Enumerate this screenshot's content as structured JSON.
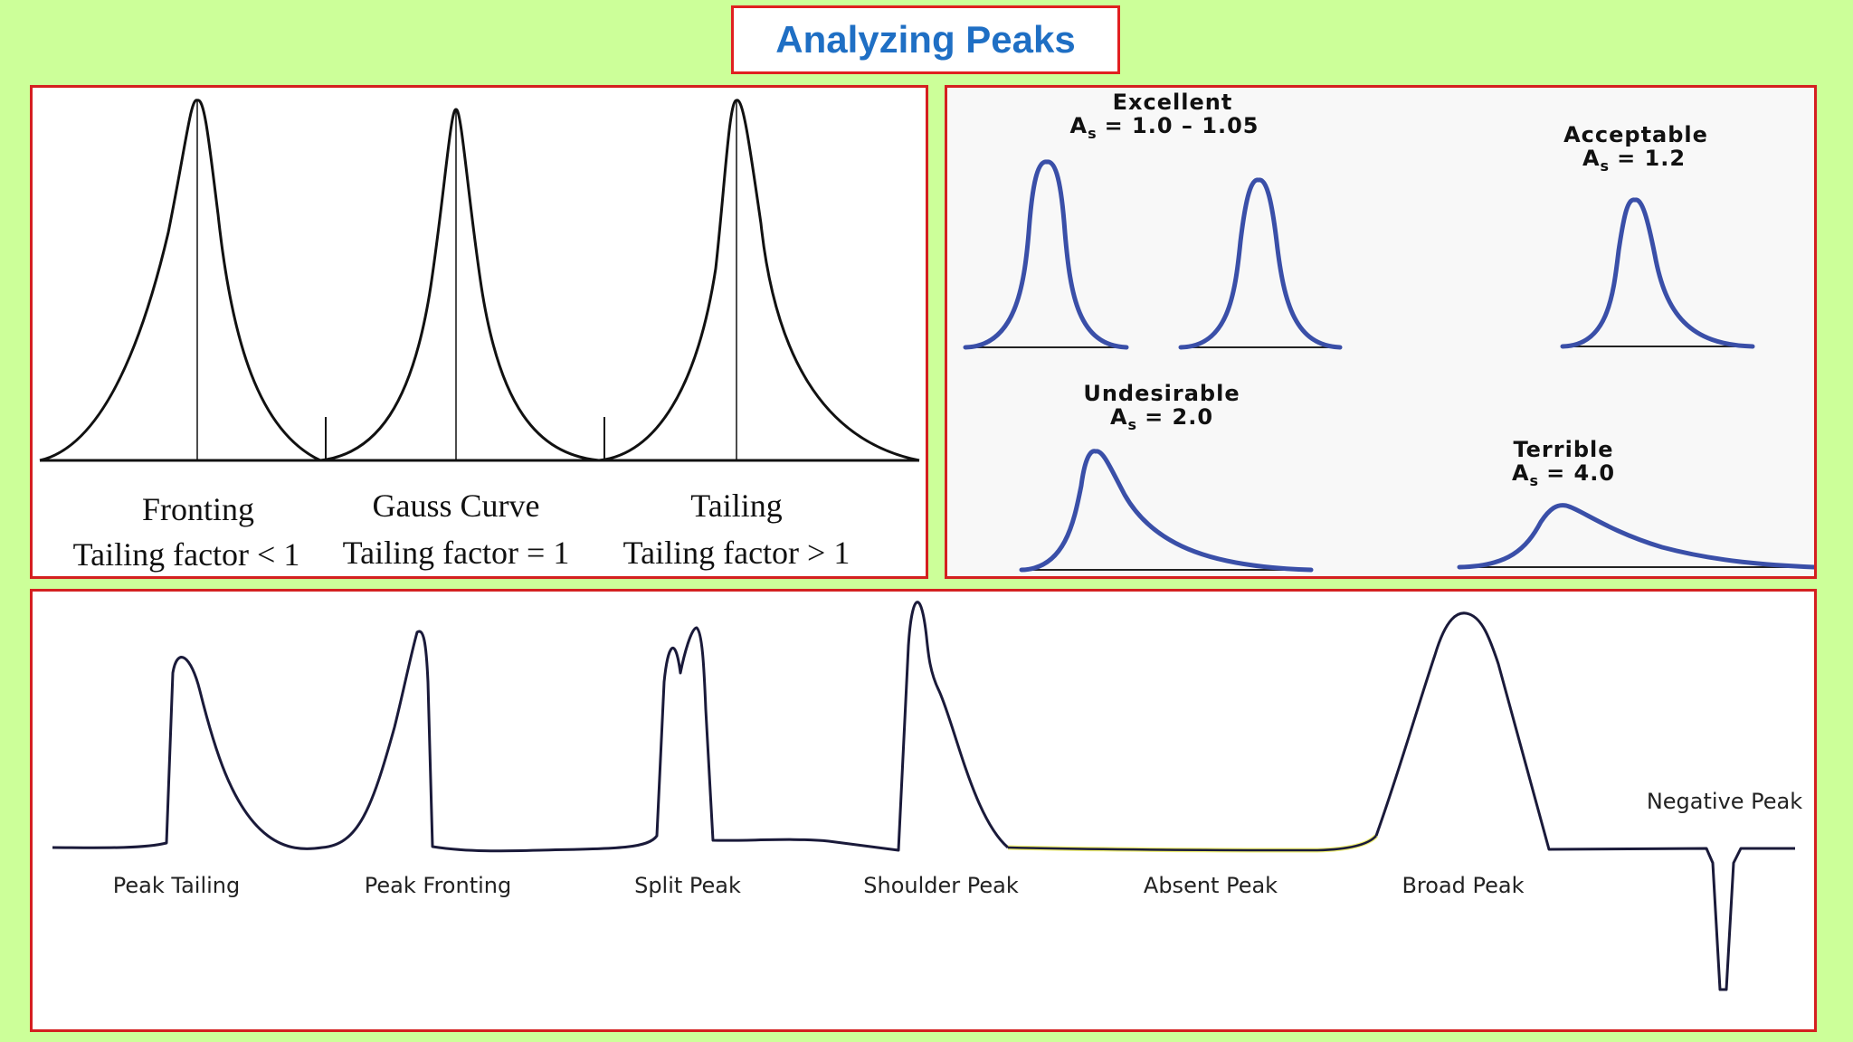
{
  "title": "Analyzing Peaks",
  "colors": {
    "background": "#ccff99",
    "border": "#d42020",
    "title_text": "#1f6fc4",
    "asym_curve": "#3a4fa8",
    "baseline_highlight": "#e6e600"
  },
  "tailing_panel": {
    "peaks": [
      {
        "name": "Fronting",
        "label": "Tailing factor < 1"
      },
      {
        "name": "Gauss Curve",
        "label": "Tailing factor = 1"
      },
      {
        "name": "Tailing",
        "label": "Tailing factor > 1"
      }
    ]
  },
  "asymmetry_panel": {
    "groups": [
      {
        "rating": "Excellent",
        "symbol": "A",
        "subscript": "s",
        "value": "= 1.0 – 1.05"
      },
      {
        "rating": "Acceptable",
        "symbol": "A",
        "subscript": "s",
        "value": "= 1.2"
      },
      {
        "rating": "Undesirable",
        "symbol": "A",
        "subscript": "s",
        "value": "= 2.0"
      },
      {
        "rating": "Terrible",
        "symbol": "A",
        "subscript": "s",
        "value": "= 4.0"
      }
    ]
  },
  "problems_panel": {
    "labels": [
      "Peak Tailing",
      "Peak Fronting",
      "Split Peak",
      "Shoulder Peak",
      "Absent Peak",
      "Broad Peak"
    ],
    "negative_label": "Negative Peak"
  }
}
